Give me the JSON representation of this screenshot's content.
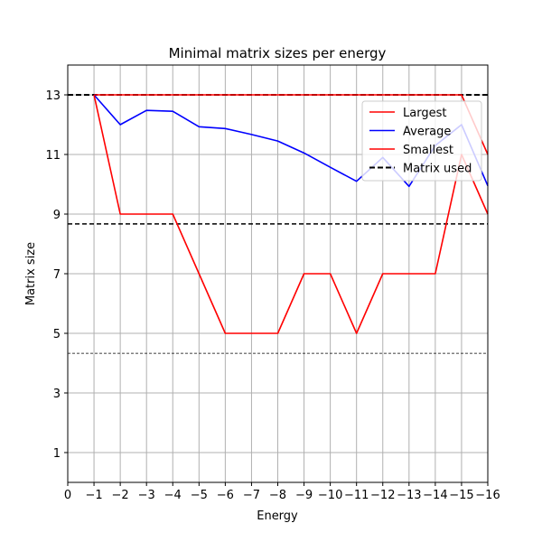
{
  "chart_data": {
    "type": "line",
    "title": "Minimal matrix sizes per energy",
    "xlabel": "Energy",
    "ylabel": "Matrix size",
    "x_ticks": [
      "0",
      "−1",
      "−2",
      "−3",
      "−4",
      "−5",
      "−6",
      "−7",
      "−8",
      "−9",
      "−10",
      "−11",
      "−12",
      "−13",
      "−14",
      "−15",
      "−16"
    ],
    "y_ticks": [
      "1",
      "3",
      "5",
      "7",
      "9",
      "11",
      "13"
    ],
    "xlim": [
      0,
      16
    ],
    "ylim": [
      0,
      14
    ],
    "grid": true,
    "legend_position": "top-right",
    "categories": [
      "−1",
      "−2",
      "−3",
      "−4",
      "−5",
      "−6",
      "−7",
      "−8",
      "−9",
      "−10",
      "−11",
      "−12",
      "−13",
      "−14",
      "−15",
      "−16"
    ],
    "series": [
      {
        "name": "Largest",
        "color": "#ff0000",
        "style": "solid",
        "values": [
          13,
          13,
          13,
          13,
          13,
          13,
          13,
          13,
          13,
          13,
          13,
          13,
          13,
          13,
          13,
          11
        ]
      },
      {
        "name": "Average",
        "color": "#0000ff",
        "style": "solid",
        "values": [
          13,
          12.0,
          12.48,
          12.45,
          11.93,
          11.87,
          11.67,
          11.45,
          11.05,
          10.57,
          10.1,
          10.9,
          9.93,
          11.3,
          12.0,
          9.95
        ]
      },
      {
        "name": "Smallest",
        "color": "#ff0000",
        "style": "solid",
        "values": [
          13,
          9,
          9,
          9,
          7,
          5,
          5,
          5,
          7,
          7,
          5,
          7,
          7,
          7,
          11,
          9
        ]
      }
    ],
    "reference_lines": [
      {
        "name": "Matrix used",
        "y": 13,
        "color": "#000000",
        "style": "dashed",
        "weight": "thick"
      },
      {
        "y": 8.67,
        "color": "#000000",
        "style": "dashed",
        "weight": "medium"
      },
      {
        "y": 4.33,
        "color": "#000000",
        "style": "dashed",
        "weight": "thin"
      }
    ]
  }
}
